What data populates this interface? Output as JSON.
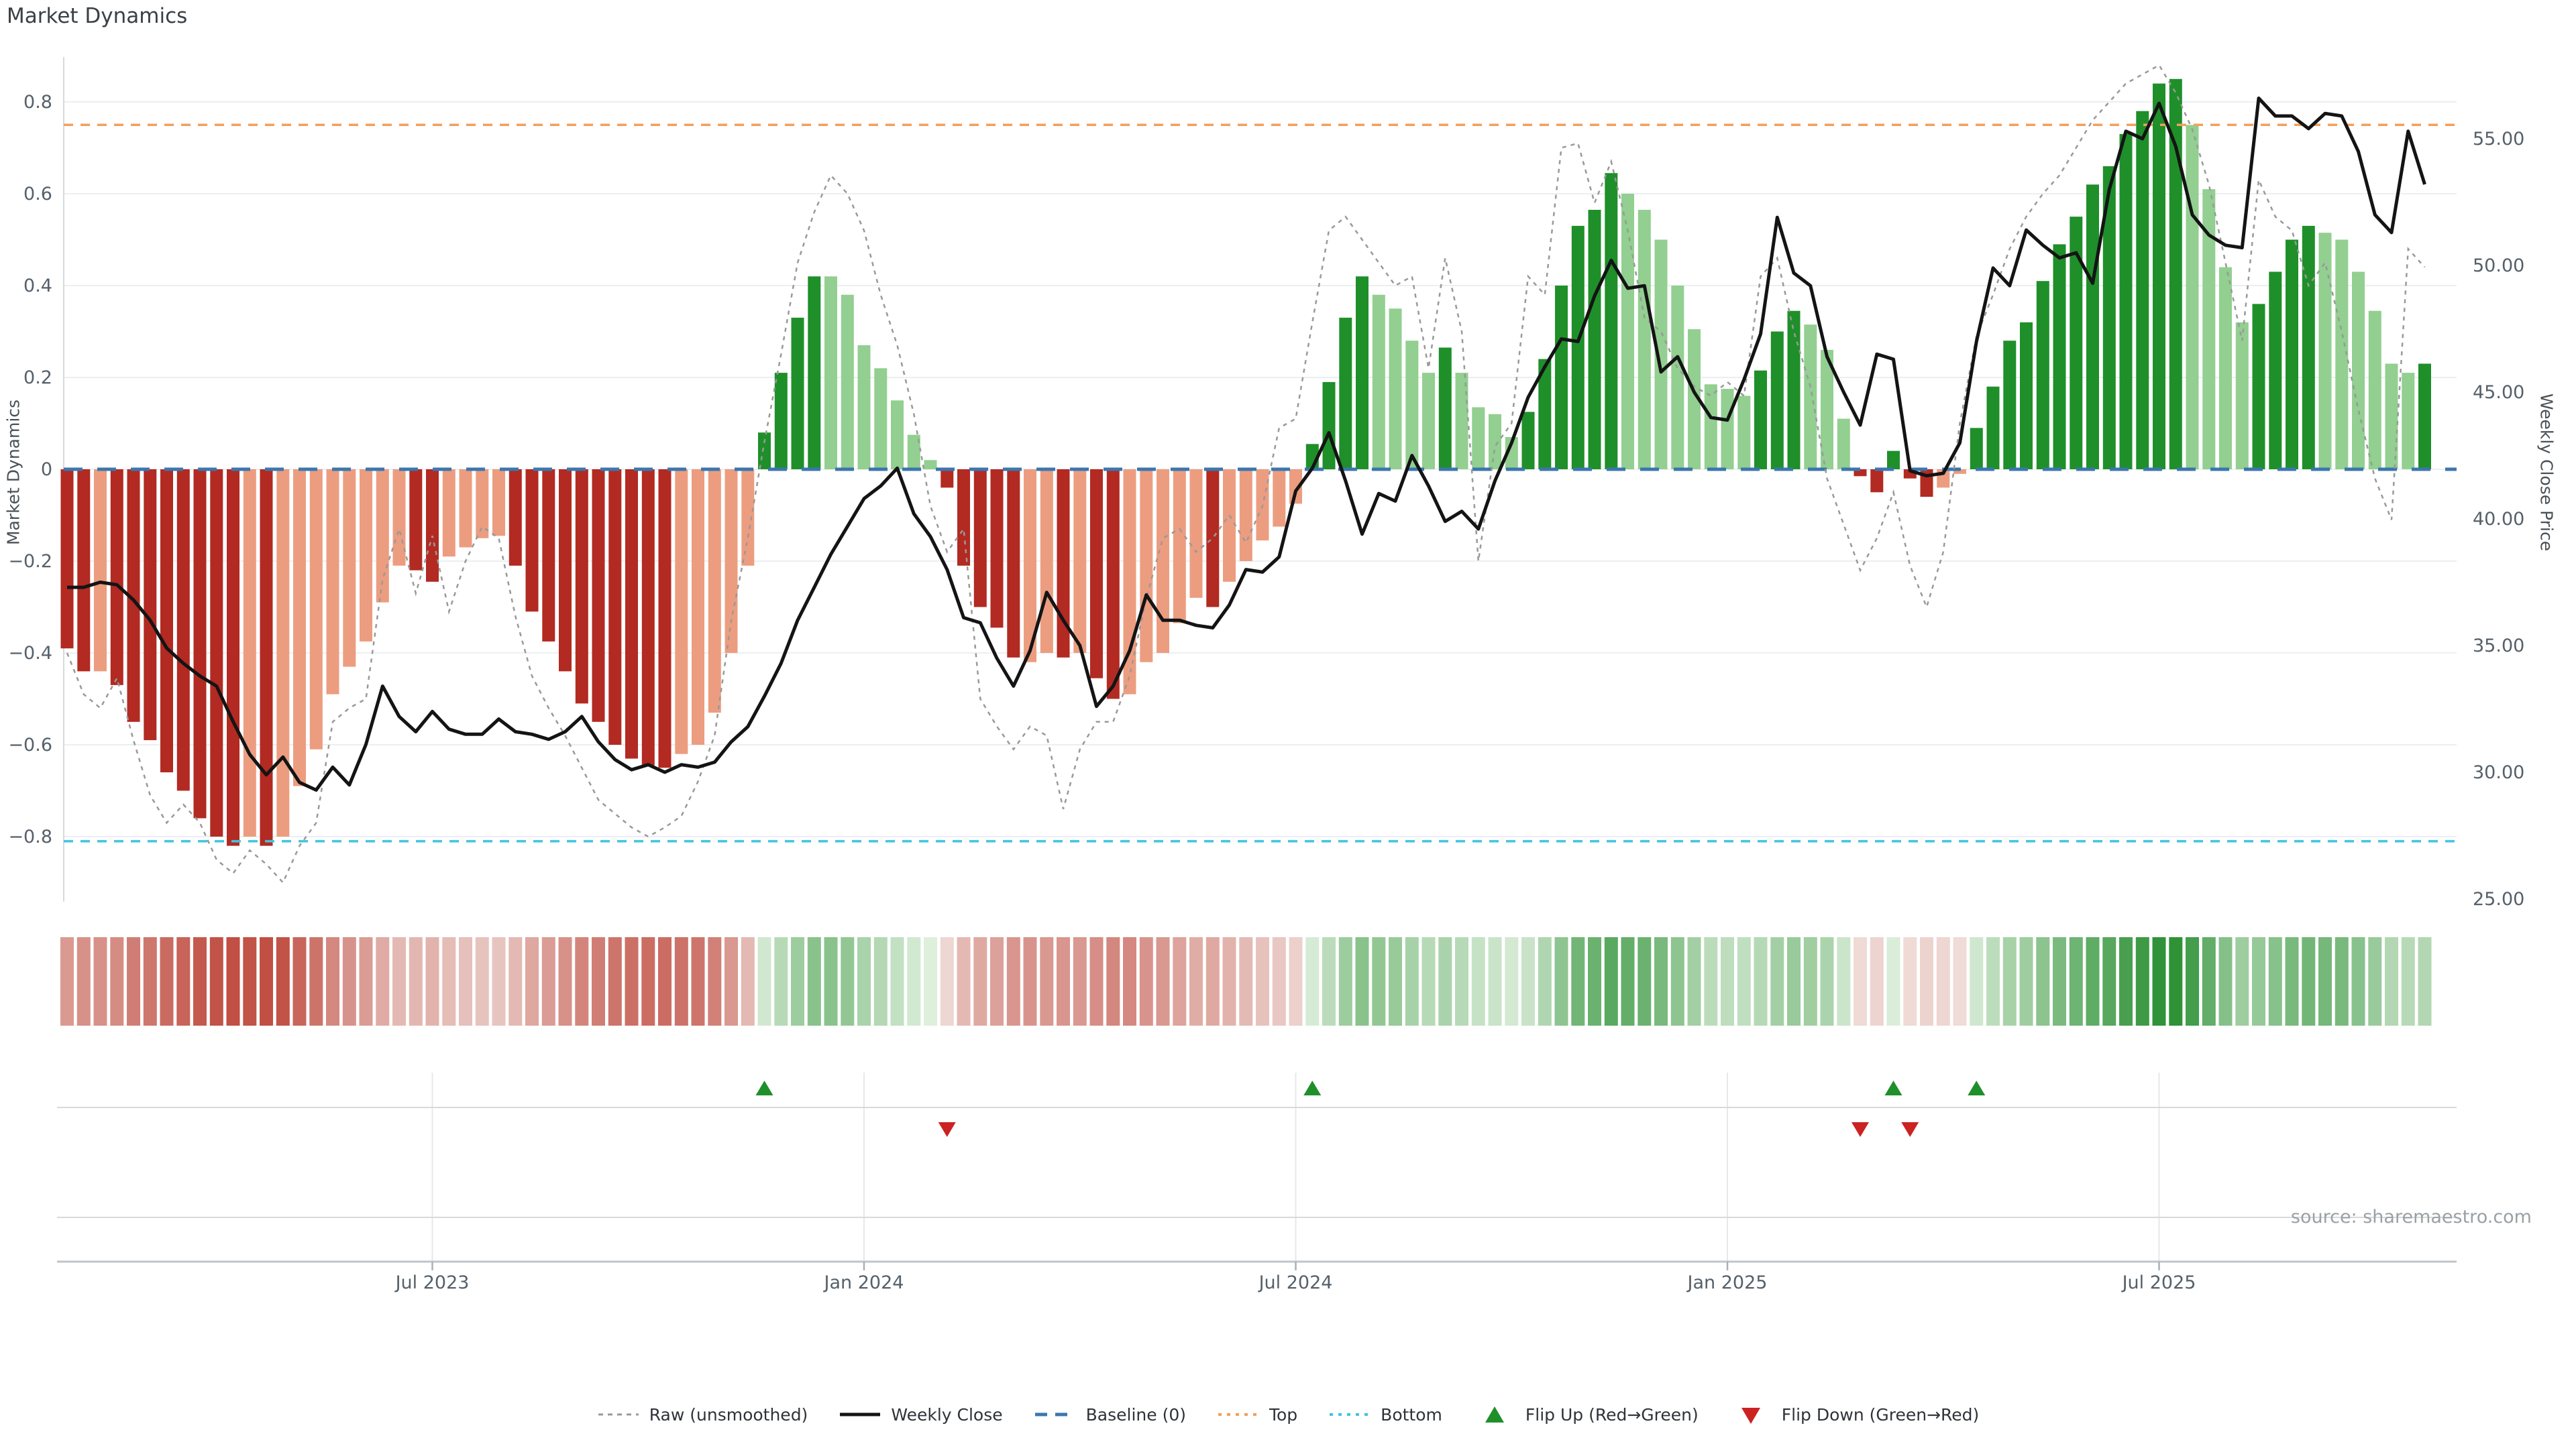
{
  "title": "Market Dynamics",
  "source_note": "source: sharemaestro.com",
  "axes": {
    "left_label": "Market Dynamics",
    "right_label": "Weekly Close Price",
    "left_ticks": [
      {
        "v": 0.8,
        "label": "0.8"
      },
      {
        "v": 0.6,
        "label": "0.6"
      },
      {
        "v": 0.4,
        "label": "0.4"
      },
      {
        "v": 0.2,
        "label": "0.2"
      },
      {
        "v": 0.0,
        "label": "0"
      },
      {
        "v": -0.2,
        "label": "−0.2"
      },
      {
        "v": -0.4,
        "label": "−0.4"
      },
      {
        "v": -0.6,
        "label": "−0.6"
      },
      {
        "v": -0.8,
        "label": "−0.8"
      }
    ],
    "right_ticks": [
      {
        "p": 55,
        "label": "55.00"
      },
      {
        "p": 50,
        "label": "50.00"
      },
      {
        "p": 45,
        "label": "45.00"
      },
      {
        "p": 40,
        "label": "40.00"
      },
      {
        "p": 35,
        "label": "35.00"
      },
      {
        "p": 30,
        "label": "30.00"
      },
      {
        "p": 25,
        "label": "25.00"
      }
    ],
    "x_ticks": [
      {
        "week": 23,
        "label": "Jul 2023"
      },
      {
        "week": 49,
        "label": "Jan 2024"
      },
      {
        "week": 75,
        "label": "Jul 2024"
      },
      {
        "week": 101,
        "label": "Jan 2025"
      },
      {
        "week": 127,
        "label": "Jul 2025"
      }
    ]
  },
  "legend": {
    "items": [
      {
        "label": "Raw (unsmoothed)",
        "type": "dash-small",
        "color": "#999999"
      },
      {
        "label": "Weekly Close",
        "type": "solid",
        "color": "#141414"
      },
      {
        "label": "Baseline (0)",
        "type": "dash-big",
        "color": "#3b76ae"
      },
      {
        "label": "Top",
        "type": "dot",
        "color": "#f2a05c"
      },
      {
        "label": "Bottom",
        "type": "dot",
        "color": "#3fc6de"
      },
      {
        "label": "Flip Up (Red→Green)",
        "type": "tri-up",
        "color": "#1f8f2a"
      },
      {
        "label": "Flip Down (Green→Red)",
        "type": "tri-down",
        "color": "#cc2222"
      }
    ]
  },
  "colors": {
    "bar_dark_red": "#b22a22",
    "bar_light_red": "#ec9d80",
    "bar_dark_green": "#1f8f2a",
    "bar_light_green": "#92cf90",
    "close_line": "#141414",
    "raw_line": "#999999",
    "baseline": "#3b76ae",
    "top_line": "#f2a05c",
    "bottom_line": "#3fc6de",
    "grid": "#eceff1",
    "spine": "#d7dadd",
    "panel_grid": "#d9d9d9",
    "panel_axis": "#c0c4c8",
    "panel_vgrid": "#e6e8ea",
    "tick_text": "#55606a",
    "marker_up": "#1f8f2a",
    "marker_down": "#cc2222",
    "heat_neg_lo": "#f0ddd9",
    "heat_neg_hi": "#bf4a3e",
    "heat_pos_lo": "#e2f1e0",
    "heat_pos_hi": "#2f9237"
  },
  "chart_data": {
    "type": "bar",
    "description": "Weekly market-dynamics oscillator bars with raw (unsmoothed) dashed series, weekly close price on right axis, baseline 0, top/bottom threshold lines, heatmap strip and flip markers",
    "weeks": 143,
    "baseline": 0,
    "top_line": 0.75,
    "bottom_line": -0.81,
    "ylim_left": [
      -0.94,
      0.9
    ],
    "ylim_right": [
      24.8,
      58.3
    ],
    "bar_values": [
      -0.39,
      -0.44,
      -0.44,
      -0.47,
      -0.55,
      -0.59,
      -0.66,
      -0.7,
      -0.76,
      -0.8,
      -0.82,
      -0.8,
      -0.82,
      -0.8,
      -0.69,
      -0.61,
      -0.49,
      -0.43,
      -0.375,
      -0.29,
      -0.21,
      -0.22,
      -0.245,
      -0.19,
      -0.17,
      -0.15,
      -0.145,
      -0.21,
      -0.31,
      -0.375,
      -0.44,
      -0.51,
      -0.55,
      -0.6,
      -0.63,
      -0.645,
      -0.65,
      -0.62,
      -0.6,
      -0.53,
      -0.4,
      -0.21,
      0.08,
      0.21,
      0.33,
      0.42,
      0.42,
      0.38,
      0.27,
      0.22,
      0.15,
      0.075,
      0.02,
      -0.04,
      -0.21,
      -0.3,
      -0.345,
      -0.41,
      -0.42,
      -0.4,
      -0.41,
      -0.4,
      -0.455,
      -0.5,
      -0.49,
      -0.42,
      -0.4,
      -0.335,
      -0.28,
      -0.3,
      -0.245,
      -0.2,
      -0.155,
      -0.125,
      -0.075,
      0.055,
      0.19,
      0.33,
      0.42,
      0.38,
      0.35,
      0.28,
      0.21,
      0.265,
      0.21,
      0.135,
      0.12,
      0.07,
      0.125,
      0.24,
      0.4,
      0.53,
      0.565,
      0.645,
      0.6,
      0.565,
      0.5,
      0.4,
      0.305,
      0.185,
      0.175,
      0.16,
      0.215,
      0.3,
      0.345,
      0.315,
      0.26,
      0.11,
      -0.015,
      -0.05,
      0.04,
      -0.02,
      -0.06,
      -0.04,
      -0.01,
      0.09,
      0.18,
      0.28,
      0.32,
      0.41,
      0.49,
      0.55,
      0.62,
      0.66,
      0.73,
      0.78,
      0.84,
      0.85,
      0.75,
      0.61,
      0.44,
      0.32,
      0.36,
      0.43,
      0.5,
      0.53,
      0.515,
      0.5,
      0.43,
      0.345,
      0.23,
      0.21,
      0.23
    ],
    "bar_colors": [
      "dr",
      "dr",
      "lr",
      "dr",
      "dr",
      "dr",
      "dr",
      "dr",
      "dr",
      "dr",
      "dr",
      "lr",
      "dr",
      "lr",
      "lr",
      "lr",
      "lr",
      "lr",
      "lr",
      "lr",
      "lr",
      "dr",
      "dr",
      "lr",
      "lr",
      "lr",
      "lr",
      "dr",
      "dr",
      "dr",
      "dr",
      "dr",
      "dr",
      "dr",
      "dr",
      "dr",
      "dr",
      "lr",
      "lr",
      "lr",
      "lr",
      "lr",
      "dg",
      "dg",
      "dg",
      "dg",
      "lg",
      "lg",
      "lg",
      "lg",
      "lg",
      "lg",
      "lg",
      "dr",
      "dr",
      "dr",
      "dr",
      "dr",
      "lr",
      "lr",
      "dr",
      "lr",
      "dr",
      "dr",
      "lr",
      "lr",
      "lr",
      "lr",
      "lr",
      "dr",
      "lr",
      "lr",
      "lr",
      "lr",
      "lr",
      "dg",
      "dg",
      "dg",
      "dg",
      "lg",
      "lg",
      "lg",
      "lg",
      "dg",
      "lg",
      "lg",
      "lg",
      "lg",
      "dg",
      "dg",
      "dg",
      "dg",
      "dg",
      "dg",
      "lg",
      "lg",
      "lg",
      "lg",
      "lg",
      "lg",
      "lg",
      "lg",
      "dg",
      "dg",
      "dg",
      "lg",
      "lg",
      "lg",
      "dr",
      "dr",
      "dg",
      "dr",
      "dr",
      "lr",
      "lr",
      "dg",
      "dg",
      "dg",
      "dg",
      "dg",
      "dg",
      "dg",
      "dg",
      "dg",
      "dg",
      "dg",
      "dg",
      "dg",
      "lg",
      "lg",
      "lg",
      "lg",
      "dg",
      "dg",
      "dg",
      "dg",
      "lg",
      "lg",
      "lg",
      "lg",
      "lg",
      "lg",
      "dg"
    ],
    "raw_values": [
      -0.4,
      -0.49,
      -0.52,
      -0.455,
      -0.59,
      -0.71,
      -0.77,
      -0.73,
      -0.77,
      -0.85,
      -0.88,
      -0.83,
      -0.86,
      -0.9,
      -0.82,
      -0.77,
      -0.55,
      -0.52,
      -0.5,
      -0.24,
      -0.13,
      -0.27,
      -0.145,
      -0.31,
      -0.2,
      -0.125,
      -0.15,
      -0.32,
      -0.45,
      -0.52,
      -0.58,
      -0.65,
      -0.72,
      -0.75,
      -0.78,
      -0.8,
      -0.78,
      -0.755,
      -0.68,
      -0.58,
      -0.33,
      -0.15,
      0.06,
      0.25,
      0.45,
      0.56,
      0.64,
      0.6,
      0.52,
      0.38,
      0.27,
      0.12,
      -0.08,
      -0.18,
      -0.13,
      -0.5,
      -0.56,
      -0.61,
      -0.56,
      -0.58,
      -0.74,
      -0.61,
      -0.55,
      -0.55,
      -0.45,
      -0.28,
      -0.15,
      -0.13,
      -0.18,
      -0.15,
      -0.1,
      -0.16,
      -0.08,
      0.09,
      0.11,
      0.32,
      0.52,
      0.55,
      0.5,
      0.45,
      0.4,
      0.42,
      0.22,
      0.46,
      0.3,
      -0.2,
      0.05,
      0.1,
      0.42,
      0.38,
      0.7,
      0.71,
      0.58,
      0.67,
      0.52,
      0.33,
      0.3,
      0.22,
      0.18,
      0.16,
      0.19,
      0.16,
      0.42,
      0.46,
      0.3,
      0.18,
      -0.02,
      -0.12,
      -0.22,
      -0.15,
      -0.05,
      -0.21,
      -0.3,
      -0.18,
      0.1,
      0.29,
      0.38,
      0.48,
      0.55,
      0.6,
      0.64,
      0.7,
      0.76,
      0.8,
      0.84,
      0.86,
      0.88,
      0.82,
      0.74,
      0.62,
      0.45,
      0.28,
      0.63,
      0.55,
      0.52,
      0.4,
      0.45,
      0.3,
      0.13,
      -0.02,
      -0.11,
      0.48,
      0.44
    ],
    "close_values": [
      37.3,
      37.3,
      37.5,
      37.4,
      36.8,
      36.0,
      34.9,
      34.3,
      33.8,
      33.4,
      32.0,
      30.7,
      29.9,
      30.6,
      29.6,
      29.3,
      30.2,
      29.5,
      31.1,
      33.4,
      32.2,
      31.6,
      32.4,
      31.7,
      31.5,
      31.5,
      32.1,
      31.6,
      31.5,
      31.3,
      31.6,
      32.2,
      31.2,
      30.5,
      30.1,
      30.3,
      30.0,
      30.3,
      30.2,
      30.4,
      31.2,
      31.8,
      33.0,
      34.3,
      36.0,
      37.3,
      38.6,
      39.7,
      40.8,
      41.3,
      42.0,
      40.2,
      39.3,
      38.0,
      36.1,
      35.9,
      34.5,
      33.4,
      34.8,
      37.1,
      36.0,
      35.0,
      32.6,
      33.4,
      34.8,
      37.0,
      36.0,
      36.0,
      35.8,
      35.7,
      36.6,
      38.0,
      37.9,
      38.5,
      41.1,
      42.0,
      43.4,
      41.5,
      39.4,
      41.0,
      40.7,
      42.5,
      41.3,
      39.9,
      40.3,
      39.6,
      41.5,
      43.0,
      44.8,
      46.0,
      47.1,
      47.0,
      48.8,
      50.2,
      49.1,
      49.2,
      45.8,
      46.4,
      45.0,
      44.0,
      43.9,
      45.5,
      47.3,
      51.9,
      49.7,
      49.2,
      46.4,
      45.0,
      43.7,
      46.5,
      46.3,
      41.9,
      41.7,
      41.8,
      43.0,
      47.0,
      49.9,
      49.2,
      51.4,
      50.8,
      50.3,
      50.5,
      49.3,
      53.0,
      55.3,
      55.0,
      56.4,
      54.7,
      52.0,
      51.2,
      50.8,
      50.7,
      56.6,
      55.9,
      55.9,
      55.4,
      56.0,
      55.9,
      54.5,
      52.0,
      51.3,
      55.3,
      53.2
    ],
    "markers": {
      "flip_up_weeks": [
        43,
        76,
        111,
        116
      ],
      "flip_down_weeks": [
        54,
        109,
        112
      ]
    },
    "legend_position": "bottom",
    "grid": true
  }
}
